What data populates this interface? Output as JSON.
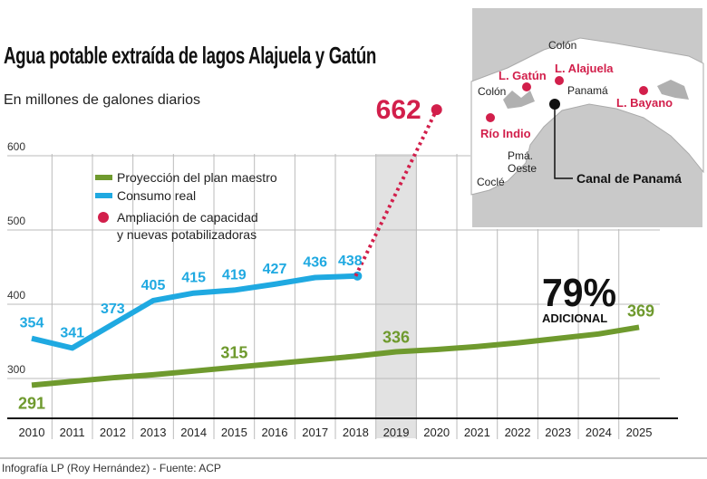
{
  "title": "Agua potable extraída de lagos Alajuela y Gatún",
  "subtitle": "En millones de galones diarios",
  "footer": "Infografía LP (Roy Hernández) - Fuente: ACP",
  "chart_data": {
    "type": "line",
    "title": "Agua potable extraída de lagos Alajuela y Gatún",
    "ylabel": "En millones de galones diarios",
    "x": [
      2010,
      2011,
      2012,
      2013,
      2014,
      2015,
      2016,
      2017,
      2018,
      2019,
      2020,
      2021,
      2022,
      2023,
      2024,
      2025
    ],
    "yticks": [
      300,
      400,
      500,
      600
    ],
    "ylim": [
      250,
      620
    ],
    "grid": true,
    "highlighted_year": 2019,
    "legend_position": "top-left",
    "series": [
      {
        "name": "Proyección del plan maestro",
        "color": "#6f9a2e",
        "x": [
          2010,
          2011,
          2012,
          2013,
          2014,
          2015,
          2016,
          2017,
          2018,
          2019,
          2020,
          2021,
          2022,
          2023,
          2024,
          2025
        ],
        "values": [
          291,
          296,
          301,
          305,
          310,
          315,
          320,
          325,
          330,
          336,
          339,
          343,
          348,
          354,
          360,
          369
        ],
        "labeled": {
          "2010": "291",
          "2015": "315",
          "2019": "336",
          "2025": "369"
        }
      },
      {
        "name": "Consumo real",
        "color": "#1fa9e1",
        "x": [
          2010,
          2011,
          2012,
          2013,
          2014,
          2015,
          2016,
          2017,
          2018
        ],
        "values": [
          354,
          341,
          373,
          405,
          415,
          419,
          427,
          436,
          438
        ],
        "labeled": {
          "2010": "354",
          "2011": "341",
          "2012": "373",
          "2013": "405",
          "2014": "415",
          "2015": "419",
          "2016": "427",
          "2017": "436",
          "2018": "438"
        }
      },
      {
        "name": "Ampliación de capacidad y nuevas potabilizadoras",
        "legend_lines": [
          "Ampliación de capacidad",
          "y nuevas potabilizadoras"
        ],
        "color": "#d21f4b",
        "x": [
          2018,
          2020
        ],
        "values": [
          438,
          662
        ],
        "style": "dotted",
        "labeled": {
          "2020": "662"
        }
      }
    ],
    "annotation": {
      "value": "79%",
      "text": "ADICIONAL"
    }
  },
  "map": {
    "labels": {
      "colon_top": "Colón",
      "colon_left": "Colón",
      "panama": "Panamá",
      "pma_oeste_1": "Pmá.",
      "pma_oeste_2": "Oeste",
      "cocle": "Coclé",
      "canal": "Canal de Panamá"
    },
    "points": [
      {
        "name": "L. Gatún",
        "color": "#d21f4b"
      },
      {
        "name": "L. Alajuela",
        "color": "#d21f4b"
      },
      {
        "name": "L. Bayano",
        "color": "#d21f4b"
      },
      {
        "name": "Río Indio",
        "color": "#d21f4b"
      }
    ]
  }
}
